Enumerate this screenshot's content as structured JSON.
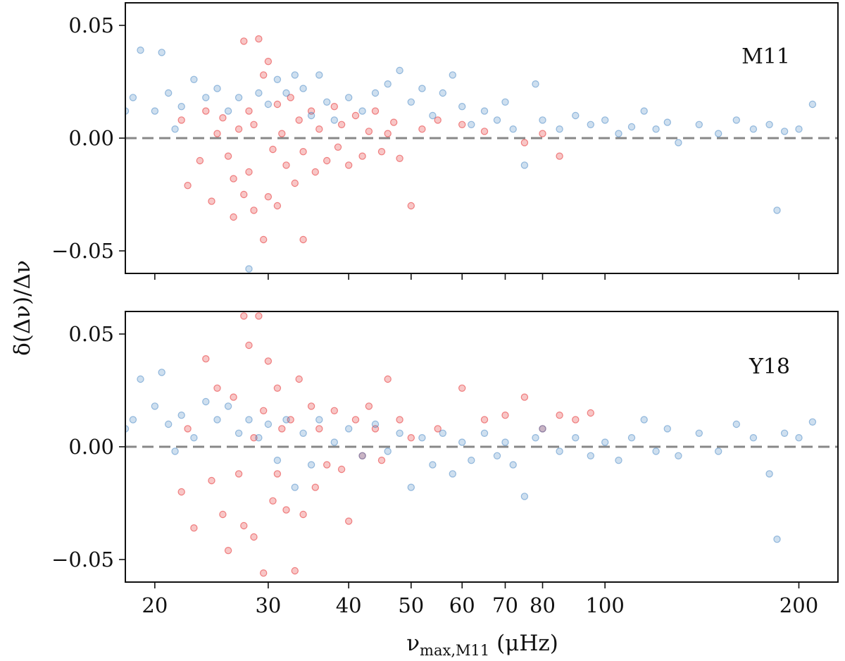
{
  "chart_data": {
    "type": "scatter",
    "xlabel": "ν_max,M11 (μHz)",
    "xlabel_parts": {
      "main": "ν",
      "sub": "max,M11",
      "unit": " (μHz)"
    },
    "ylabel": "δ(Δν)/Δν",
    "x_scale": "log",
    "xlim": [
      18,
      230
    ],
    "x_ticks": [
      20,
      30,
      40,
      50,
      60,
      70,
      80,
      100,
      200
    ],
    "x_tick_labels": [
      "20",
      "30",
      "40",
      "50",
      "60",
      "70",
      "80",
      "100",
      "200"
    ],
    "series_colors": {
      "red": "#e31a1c",
      "blue": "#3b7fc1"
    },
    "panels": [
      {
        "label": "M11",
        "ylim": [
          -0.06,
          0.06
        ],
        "y_ticks": [
          -0.05,
          0,
          0.05
        ],
        "y_tick_labels": [
          "−0.05",
          "0.00",
          "0.05"
        ],
        "reference_line": 0,
        "series": [
          {
            "name": "red",
            "color": "#e31a1c",
            "opacity": 0.25,
            "points": [
              [
                22,
                0.008
              ],
              [
                22.5,
                -0.021
              ],
              [
                23.5,
                -0.01
              ],
              [
                24,
                0.012
              ],
              [
                24.5,
                -0.028
              ],
              [
                25,
                0.002
              ],
              [
                25.5,
                0.009
              ],
              [
                26,
                -0.008
              ],
              [
                26.5,
                -0.035
              ],
              [
                26.5,
                -0.018
              ],
              [
                27,
                0.004
              ],
              [
                27.5,
                0.043
              ],
              [
                27.5,
                -0.025
              ],
              [
                28,
                -0.015
              ],
              [
                28,
                0.012
              ],
              [
                28.5,
                0.006
              ],
              [
                28.5,
                -0.032
              ],
              [
                29,
                0.044
              ],
              [
                29.5,
                0.028
              ],
              [
                29.5,
                -0.045
              ],
              [
                30,
                0.034
              ],
              [
                30,
                -0.026
              ],
              [
                30.5,
                -0.005
              ],
              [
                31,
                0.015
              ],
              [
                31,
                -0.03
              ],
              [
                31.5,
                0.002
              ],
              [
                32,
                -0.012
              ],
              [
                32.5,
                0.018
              ],
              [
                33,
                -0.02
              ],
              [
                33.5,
                0.008
              ],
              [
                34,
                -0.045
              ],
              [
                34,
                -0.006
              ],
              [
                35,
                0.012
              ],
              [
                35.5,
                -0.015
              ],
              [
                36,
                0.004
              ],
              [
                37,
                -0.01
              ],
              [
                38,
                0.014
              ],
              [
                38.5,
                -0.004
              ],
              [
                39,
                0.006
              ],
              [
                40,
                -0.012
              ],
              [
                41,
                0.01
              ],
              [
                42,
                -0.008
              ],
              [
                43,
                0.003
              ],
              [
                44,
                0.012
              ],
              [
                45,
                -0.006
              ],
              [
                46,
                0.002
              ],
              [
                47,
                0.007
              ],
              [
                48,
                -0.009
              ],
              [
                50,
                -0.03
              ],
              [
                52,
                0.004
              ],
              [
                55,
                0.008
              ],
              [
                60,
                0.006
              ],
              [
                65,
                0.003
              ],
              [
                75,
                -0.002
              ],
              [
                80,
                0.002
              ],
              [
                85,
                -0.008
              ]
            ]
          },
          {
            "name": "blue",
            "color": "#3b7fc1",
            "opacity": 0.25,
            "points": [
              [
                18,
                0.012
              ],
              [
                18.5,
                0.018
              ],
              [
                19,
                0.039
              ],
              [
                20,
                0.012
              ],
              [
                20.5,
                0.038
              ],
              [
                21,
                0.02
              ],
              [
                21.5,
                0.004
              ],
              [
                22,
                0.014
              ],
              [
                23,
                0.026
              ],
              [
                24,
                0.018
              ],
              [
                25,
                0.022
              ],
              [
                26,
                0.012
              ],
              [
                27,
                0.018
              ],
              [
                28,
                -0.058
              ],
              [
                29,
                0.02
              ],
              [
                30,
                0.015
              ],
              [
                31,
                0.026
              ],
              [
                32,
                0.02
              ],
              [
                33,
                0.028
              ],
              [
                34,
                0.022
              ],
              [
                35,
                0.01
              ],
              [
                36,
                0.028
              ],
              [
                37,
                0.016
              ],
              [
                38,
                0.008
              ],
              [
                40,
                0.018
              ],
              [
                42,
                0.012
              ],
              [
                44,
                0.02
              ],
              [
                46,
                0.024
              ],
              [
                48,
                0.03
              ],
              [
                50,
                0.016
              ],
              [
                52,
                0.022
              ],
              [
                54,
                0.01
              ],
              [
                56,
                0.02
              ],
              [
                58,
                0.028
              ],
              [
                60,
                0.014
              ],
              [
                62,
                0.006
              ],
              [
                65,
                0.012
              ],
              [
                68,
                0.008
              ],
              [
                70,
                0.016
              ],
              [
                72,
                0.004
              ],
              [
                75,
                -0.012
              ],
              [
                78,
                0.024
              ],
              [
                80,
                0.008
              ],
              [
                85,
                0.004
              ],
              [
                90,
                0.01
              ],
              [
                95,
                0.006
              ],
              [
                100,
                0.008
              ],
              [
                105,
                0.002
              ],
              [
                110,
                0.005
              ],
              [
                115,
                0.012
              ],
              [
                120,
                0.004
              ],
              [
                125,
                0.007
              ],
              [
                130,
                -0.002
              ],
              [
                140,
                0.006
              ],
              [
                150,
                0.002
              ],
              [
                160,
                0.008
              ],
              [
                170,
                0.004
              ],
              [
                180,
                0.006
              ],
              [
                185,
                -0.032
              ],
              [
                190,
                0.003
              ],
              [
                200,
                0.004
              ],
              [
                210,
                0.015
              ]
            ]
          }
        ]
      },
      {
        "label": "Y18",
        "ylim": [
          -0.06,
          0.06
        ],
        "y_ticks": [
          -0.05,
          0,
          0.05
        ],
        "y_tick_labels": [
          "−0.05",
          "0.00",
          "0.05"
        ],
        "reference_line": 0,
        "series": [
          {
            "name": "red",
            "color": "#e31a1c",
            "opacity": 0.25,
            "points": [
              [
                22,
                -0.02
              ],
              [
                22.5,
                0.008
              ],
              [
                23,
                -0.036
              ],
              [
                24,
                0.039
              ],
              [
                24.5,
                -0.015
              ],
              [
                25,
                0.026
              ],
              [
                25.5,
                -0.03
              ],
              [
                26,
                -0.046
              ],
              [
                26.5,
                0.022
              ],
              [
                27,
                -0.012
              ],
              [
                27.5,
                0.058
              ],
              [
                27.5,
                -0.035
              ],
              [
                28,
                0.045
              ],
              [
                28.5,
                0.004
              ],
              [
                28.5,
                -0.04
              ],
              [
                29,
                0.058
              ],
              [
                29.5,
                0.016
              ],
              [
                29.5,
                -0.056
              ],
              [
                30,
                0.038
              ],
              [
                30.5,
                -0.024
              ],
              [
                31,
                0.026
              ],
              [
                31,
                -0.012
              ],
              [
                31.5,
                0.008
              ],
              [
                32,
                -0.028
              ],
              [
                32.5,
                0.012
              ],
              [
                33,
                -0.055
              ],
              [
                33.5,
                0.03
              ],
              [
                34,
                -0.03
              ],
              [
                35,
                0.018
              ],
              [
                35.5,
                -0.018
              ],
              [
                36,
                0.008
              ],
              [
                37,
                -0.008
              ],
              [
                38,
                0.016
              ],
              [
                39,
                -0.01
              ],
              [
                40,
                -0.033
              ],
              [
                41,
                0.012
              ],
              [
                42,
                -0.004
              ],
              [
                43,
                0.018
              ],
              [
                44,
                0.008
              ],
              [
                45,
                -0.006
              ],
              [
                46,
                0.03
              ],
              [
                48,
                0.012
              ],
              [
                50,
                0.004
              ],
              [
                55,
                0.008
              ],
              [
                60,
                0.026
              ],
              [
                65,
                0.012
              ],
              [
                70,
                0.014
              ],
              [
                75,
                0.022
              ],
              [
                80,
                0.008
              ],
              [
                85,
                0.014
              ],
              [
                90,
                0.012
              ],
              [
                95,
                0.015
              ]
            ]
          },
          {
            "name": "blue",
            "color": "#3b7fc1",
            "opacity": 0.25,
            "points": [
              [
                18,
                0.008
              ],
              [
                18.5,
                0.012
              ],
              [
                19,
                0.03
              ],
              [
                20,
                0.018
              ],
              [
                20.5,
                0.033
              ],
              [
                21,
                0.01
              ],
              [
                21.5,
                -0.002
              ],
              [
                22,
                0.014
              ],
              [
                23,
                0.004
              ],
              [
                24,
                0.02
              ],
              [
                25,
                0.012
              ],
              [
                26,
                0.018
              ],
              [
                27,
                0.006
              ],
              [
                28,
                0.012
              ],
              [
                29,
                0.004
              ],
              [
                30,
                0.01
              ],
              [
                31,
                -0.006
              ],
              [
                32,
                0.012
              ],
              [
                33,
                -0.018
              ],
              [
                34,
                0.006
              ],
              [
                35,
                -0.008
              ],
              [
                36,
                0.012
              ],
              [
                38,
                0.002
              ],
              [
                40,
                0.008
              ],
              [
                42,
                -0.004
              ],
              [
                44,
                0.01
              ],
              [
                46,
                -0.002
              ],
              [
                48,
                0.006
              ],
              [
                50,
                -0.018
              ],
              [
                52,
                0.004
              ],
              [
                54,
                -0.008
              ],
              [
                56,
                0.006
              ],
              [
                58,
                -0.012
              ],
              [
                60,
                0.002
              ],
              [
                62,
                -0.006
              ],
              [
                65,
                0.006
              ],
              [
                68,
                -0.004
              ],
              [
                70,
                0.002
              ],
              [
                72,
                -0.008
              ],
              [
                75,
                -0.022
              ],
              [
                78,
                0.004
              ],
              [
                80,
                0.008
              ],
              [
                85,
                -0.002
              ],
              [
                90,
                0.004
              ],
              [
                95,
                -0.004
              ],
              [
                100,
                0.002
              ],
              [
                105,
                -0.006
              ],
              [
                110,
                0.004
              ],
              [
                115,
                0.012
              ],
              [
                120,
                -0.002
              ],
              [
                125,
                0.008
              ],
              [
                130,
                -0.004
              ],
              [
                140,
                0.006
              ],
              [
                150,
                -0.002
              ],
              [
                160,
                0.01
              ],
              [
                170,
                0.004
              ],
              [
                180,
                -0.012
              ],
              [
                185,
                -0.041
              ],
              [
                190,
                0.006
              ],
              [
                200,
                0.004
              ],
              [
                210,
                0.011
              ]
            ]
          }
        ]
      }
    ]
  }
}
